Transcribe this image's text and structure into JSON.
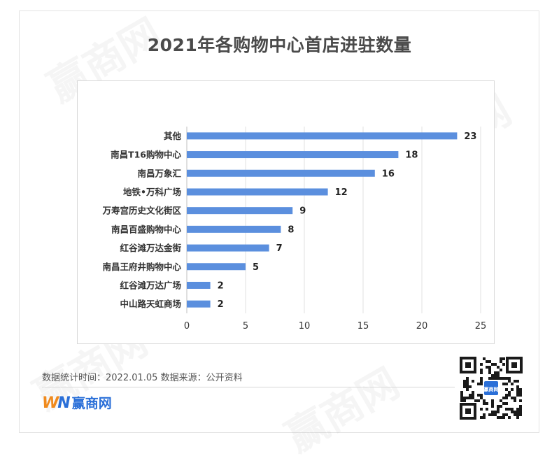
{
  "chart_data": {
    "type": "bar",
    "orientation": "horizontal",
    "title": "2021年各购物中心首店进驻数量",
    "categories": [
      "其他",
      "南昌T16购物中心",
      "南昌万象汇",
      "地铁•万科广场",
      "万寿宫历史文化街区",
      "南昌百盛购物中心",
      "红谷滩万达金街",
      "南昌王府井购物中心",
      "红谷滩万达广场",
      "中山路天虹商场"
    ],
    "values": [
      23,
      18,
      16,
      12,
      9,
      8,
      7,
      5,
      2,
      2
    ],
    "xlim": [
      0,
      25
    ],
    "xticks": [
      0,
      5,
      10,
      15,
      20,
      25
    ],
    "grid": true,
    "legend": "none",
    "bar_color": "#5b8fde",
    "data_labels": true
  },
  "footer": {
    "source_text": "数据统计时间：2022.01.05  数据来源：公开资料"
  },
  "brand": {
    "logo_w": "W",
    "logo_n": "N",
    "logo_text": "赢商网",
    "watermark": "赢商网",
    "qr_label": "赢商网",
    "orange": "#f08a1d",
    "blue": "#2a6fd8"
  }
}
